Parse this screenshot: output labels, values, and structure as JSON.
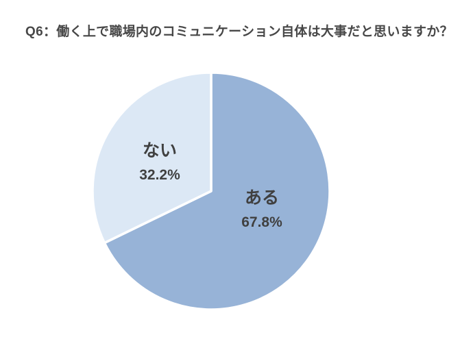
{
  "chart_data": {
    "type": "pie",
    "title": "Q6：働く上で職場内のコミュニケーション自体は大事だと思いますか？",
    "slices": [
      {
        "label": "ある",
        "value": 67.8,
        "display_pct": "67.8%",
        "color": "#97b3d7"
      },
      {
        "label": "ない",
        "value": 32.2,
        "display_pct": "32.2%",
        "color": "#dce8f5"
      }
    ],
    "start_angle_deg": 0,
    "direction": "clockwise",
    "slice_border_color": "#ffffff",
    "labels_inside": true,
    "legend": "none",
    "title_color": "#474747",
    "label_color": "#404040",
    "background_color": "#ffffff"
  }
}
